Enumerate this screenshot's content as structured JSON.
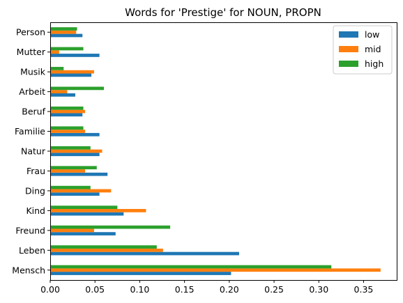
{
  "chart_data": {
    "type": "bar",
    "orientation": "horizontal",
    "title": "Words for 'Prestige' for NOUN, PROPN",
    "xlabel": "",
    "ylabel": "",
    "xlim": [
      0,
      0.387
    ],
    "xticks": [
      "0.00",
      "0.05",
      "0.10",
      "0.15",
      "0.20",
      "0.25",
      "0.30",
      "0.35"
    ],
    "categories": [
      "Mensch",
      "Leben",
      "Freund",
      "Kind",
      "Ding",
      "Frau",
      "Natur",
      "Familie",
      "Beruf",
      "Arbeit",
      "Musik",
      "Mutter",
      "Person"
    ],
    "series": [
      {
        "name": "low",
        "color": "#1f77b4",
        "values": [
          0.202,
          0.211,
          0.073,
          0.082,
          0.055,
          0.064,
          0.055,
          0.055,
          0.036,
          0.028,
          0.046,
          0.055,
          0.036
        ]
      },
      {
        "name": "mid",
        "color": "#ff7f0e",
        "values": [
          0.369,
          0.126,
          0.049,
          0.107,
          0.068,
          0.039,
          0.058,
          0.039,
          0.039,
          0.019,
          0.049,
          0.01,
          0.029
        ]
      },
      {
        "name": "high",
        "color": "#2ca02c",
        "values": [
          0.314,
          0.119,
          0.134,
          0.075,
          0.045,
          0.052,
          0.045,
          0.037,
          0.037,
          0.06,
          0.015,
          0.037,
          0.03
        ]
      }
    ],
    "legend_position": "top-right",
    "grid": false
  }
}
